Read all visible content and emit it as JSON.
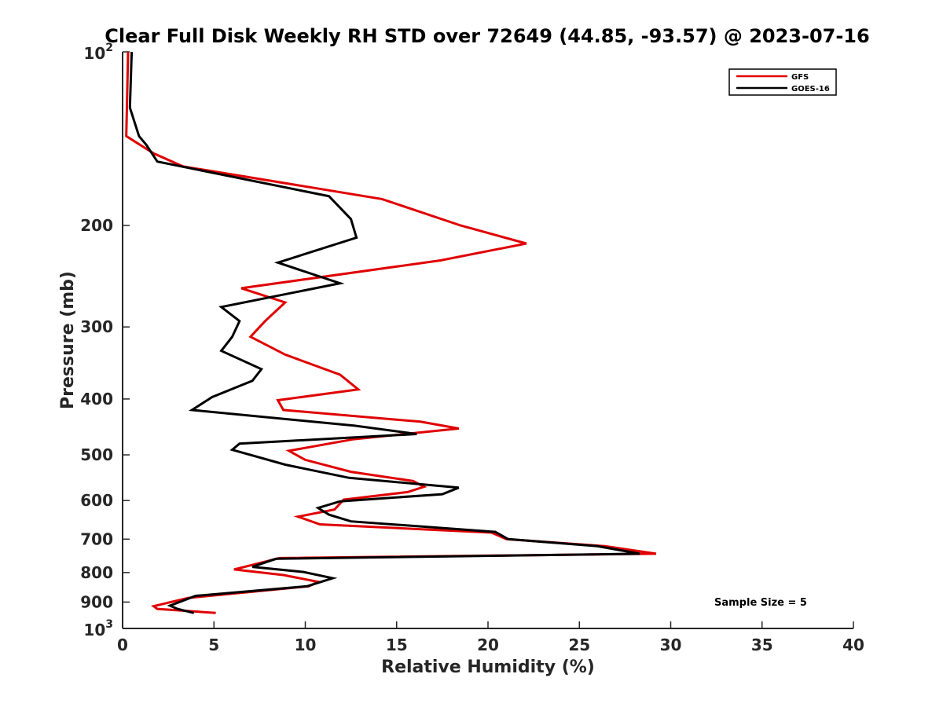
{
  "chart_data": {
    "type": "line",
    "title": "Clear Full Disk Weekly RH STD over 72649 (44.85, -93.57) @ 2023-07-16",
    "xlabel": "Relative Humidity (%)",
    "ylabel": "Pressure (mb)",
    "xlim": [
      0,
      40
    ],
    "ylim": [
      100,
      1000
    ],
    "y_scale": "log",
    "y_reversed": true,
    "x_ticks": [
      "0",
      "5",
      "10",
      "15",
      "20",
      "25",
      "30",
      "35",
      "40"
    ],
    "y_ticks": [
      {
        "value": 100,
        "base": "10",
        "exp": "2"
      },
      {
        "value": 200,
        "label": "200"
      },
      {
        "value": 300,
        "label": "300"
      },
      {
        "value": 400,
        "label": "400"
      },
      {
        "value": 500,
        "label": "500"
      },
      {
        "value": 600,
        "label": "600"
      },
      {
        "value": 700,
        "label": "700"
      },
      {
        "value": 800,
        "label": "800"
      },
      {
        "value": 900,
        "label": "900"
      },
      {
        "value": 1000,
        "base": "10",
        "exp": "3"
      }
    ],
    "legend_position": "top-right",
    "annotation": "Sample Size = 5",
    "series": [
      {
        "name": "GFS",
        "color": "#e00000",
        "points": [
          [
            0.3,
            100
          ],
          [
            0.2,
            140
          ],
          [
            1.7,
            150
          ],
          [
            3.3,
            158
          ],
          [
            14.2,
            180
          ],
          [
            18.5,
            200
          ],
          [
            22.1,
            215
          ],
          [
            17.4,
            230
          ],
          [
            6.5,
            257
          ],
          [
            8.9,
            272
          ],
          [
            7.8,
            293
          ],
          [
            7.0,
            312
          ],
          [
            8.9,
            335
          ],
          [
            11.9,
            363
          ],
          [
            12.9,
            385
          ],
          [
            8.5,
            402
          ],
          [
            8.8,
            418
          ],
          [
            16.3,
            438
          ],
          [
            18.4,
            450
          ],
          [
            12.6,
            470
          ],
          [
            9.1,
            492
          ],
          [
            10.0,
            510
          ],
          [
            12.5,
            535
          ],
          [
            15.9,
            555
          ],
          [
            16.5,
            568
          ],
          [
            15.6,
            580
          ],
          [
            12.1,
            598
          ],
          [
            11.6,
            622
          ],
          [
            9.6,
            640
          ],
          [
            10.8,
            660
          ],
          [
            20.2,
            682
          ],
          [
            21.0,
            700
          ],
          [
            26.4,
            720
          ],
          [
            29.2,
            742
          ],
          [
            8.6,
            755
          ],
          [
            6.1,
            790
          ],
          [
            8.8,
            808
          ],
          [
            10.7,
            830
          ],
          [
            10.2,
            845
          ],
          [
            3.6,
            885
          ],
          [
            1.7,
            915
          ],
          [
            1.9,
            925
          ],
          [
            5.1,
            940
          ]
        ]
      },
      {
        "name": "GOES-16",
        "color": "#000000",
        "points": [
          [
            0.5,
            100
          ],
          [
            0.4,
            125
          ],
          [
            0.9,
            140
          ],
          [
            1.3,
            145
          ],
          [
            1.9,
            155
          ],
          [
            11.3,
            178
          ],
          [
            12.5,
            195
          ],
          [
            12.8,
            210
          ],
          [
            8.5,
            232
          ],
          [
            11.9,
            252
          ],
          [
            5.4,
            277
          ],
          [
            6.4,
            293
          ],
          [
            6.0,
            312
          ],
          [
            5.4,
            330
          ],
          [
            7.6,
            355
          ],
          [
            7.1,
            372
          ],
          [
            4.9,
            397
          ],
          [
            3.8,
            418
          ],
          [
            12.7,
            445
          ],
          [
            16.1,
            460
          ],
          [
            6.4,
            478
          ],
          [
            6.0,
            490
          ],
          [
            8.9,
            520
          ],
          [
            12.4,
            548
          ],
          [
            18.4,
            570
          ],
          [
            17.5,
            585
          ],
          [
            11.9,
            602
          ],
          [
            10.7,
            618
          ],
          [
            11.3,
            635
          ],
          [
            12.5,
            652
          ],
          [
            20.4,
            680
          ],
          [
            21.1,
            700
          ],
          [
            26.0,
            720
          ],
          [
            28.3,
            742
          ],
          [
            8.4,
            757
          ],
          [
            7.1,
            782
          ],
          [
            9.9,
            798
          ],
          [
            11.5,
            818
          ],
          [
            10.1,
            845
          ],
          [
            4.0,
            878
          ],
          [
            2.6,
            913
          ],
          [
            3.0,
            925
          ],
          [
            3.9,
            940
          ]
        ]
      }
    ]
  }
}
